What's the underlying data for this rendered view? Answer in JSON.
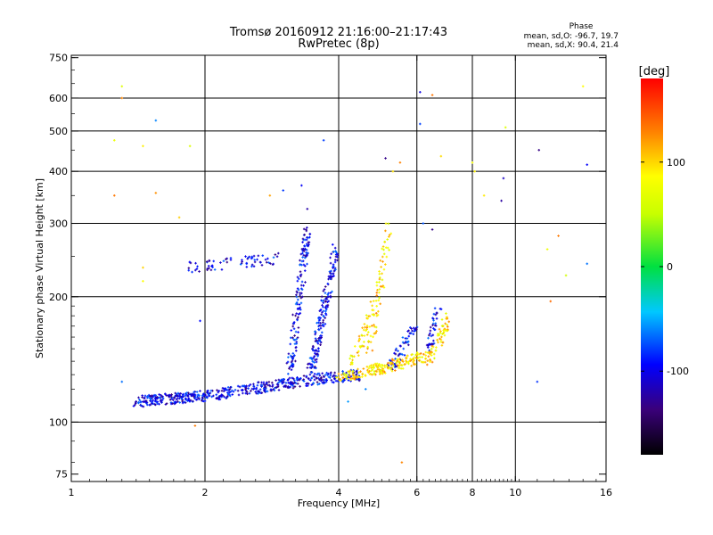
{
  "chart_data": {
    "type": "scatter",
    "title": "Tromsø 20160912 21:16:00–21:17:43",
    "subtitle": "RwPretec (8p)",
    "xlabel": "Frequency [MHz]",
    "ylabel": "Stationary phase Virtual Height [km]",
    "x_scale": "log2",
    "y_scale": "log",
    "xlim": [
      1,
      16
    ],
    "ylim": [
      72,
      760
    ],
    "x_ticks": [
      1,
      2,
      4,
      6,
      8,
      10,
      16
    ],
    "x_tick_labels": [
      "1",
      "2",
      "4",
      "6",
      "8",
      "10",
      "16"
    ],
    "y_ticks": [
      75,
      100,
      200,
      300,
      400,
      500,
      600,
      750
    ],
    "y_tick_labels": [
      "75",
      "100",
      "200",
      "300",
      "400",
      "500",
      "600",
      "750"
    ],
    "grid": true,
    "grid_x": [
      2,
      4,
      6,
      8,
      10
    ],
    "grid_y": [
      100,
      200,
      300,
      400,
      500,
      600
    ],
    "stats": {
      "title": "Phase",
      "line_o": "mean, sd,O: -96.7, 19.7",
      "line_x": "mean, sd,X:  90.4, 21.4"
    },
    "colorbar": {
      "label": "[deg]",
      "min": -180,
      "max": 180,
      "ticks": [
        100,
        0,
        -100
      ],
      "tick_labels": [
        "100",
        "0",
        "-100"
      ]
    },
    "series": [
      {
        "name": "O",
        "color_phase": -100,
        "traces": [
          {
            "f_start": 1.4,
            "f_end": 2.05,
            "h_start": 112,
            "h_end": 116,
            "count": 220
          },
          {
            "f_start": 2.05,
            "f_end": 3.8,
            "h_start": 116,
            "h_end": 128,
            "count": 260
          },
          {
            "f_start": 3.8,
            "f_end": 4.5,
            "h_start": 128,
            "h_end": 130,
            "count": 60
          },
          {
            "f_start": 3.1,
            "f_end": 3.4,
            "h_start": 130,
            "h_end": 290,
            "count": 150
          },
          {
            "f_start": 3.45,
            "f_end": 3.95,
            "h_start": 130,
            "h_end": 260,
            "count": 180
          },
          {
            "f_start": 5.2,
            "f_end": 6.0,
            "h_start": 135,
            "h_end": 170,
            "count": 60
          },
          {
            "f_start": 6.4,
            "f_end": 6.7,
            "h_start": 150,
            "h_end": 190,
            "count": 40
          },
          {
            "f_start": 1.85,
            "f_end": 3.0,
            "h_start": 235,
            "h_end": 248,
            "count": 70
          }
        ],
        "points": [
          {
            "x": 1.55,
            "y": 530
          },
          {
            "x": 6.1,
            "y": 620
          },
          {
            "x": 6.1,
            "y": 520
          },
          {
            "x": 5.1,
            "y": 430
          },
          {
            "x": 3.7,
            "y": 475
          },
          {
            "x": 3.3,
            "y": 370
          },
          {
            "x": 3.0,
            "y": 360
          },
          {
            "x": 3.4,
            "y": 325
          },
          {
            "x": 1.95,
            "y": 175
          },
          {
            "x": 9.4,
            "y": 385
          },
          {
            "x": 9.3,
            "y": 340
          },
          {
            "x": 11.3,
            "y": 450
          },
          {
            "x": 14.5,
            "y": 240
          },
          {
            "x": 14.5,
            "y": 415
          },
          {
            "x": 11.2,
            "y": 125
          },
          {
            "x": 1.3,
            "y": 125
          },
          {
            "x": 4.2,
            "y": 112
          },
          {
            "x": 4.6,
            "y": 120
          },
          {
            "x": 6.2,
            "y": 300
          },
          {
            "x": 6.5,
            "y": 290
          }
        ]
      },
      {
        "name": "X",
        "color_phase": 95,
        "traces": [
          {
            "f_start": 4.0,
            "f_end": 5.0,
            "h_start": 128,
            "h_end": 135,
            "count": 80
          },
          {
            "f_start": 4.8,
            "f_end": 6.4,
            "h_start": 133,
            "h_end": 145,
            "count": 120
          },
          {
            "f_start": 6.4,
            "f_end": 7.1,
            "h_start": 140,
            "h_end": 180,
            "count": 60
          },
          {
            "f_start": 4.7,
            "f_end": 5.2,
            "h_start": 150,
            "h_end": 295,
            "count": 70
          },
          {
            "f_start": 4.3,
            "f_end": 4.8,
            "h_start": 140,
            "h_end": 190,
            "count": 50
          }
        ],
        "points": [
          {
            "x": 1.25,
            "y": 475
          },
          {
            "x": 1.45,
            "y": 460
          },
          {
            "x": 1.85,
            "y": 460
          },
          {
            "x": 1.25,
            "y": 350
          },
          {
            "x": 1.55,
            "y": 355
          },
          {
            "x": 1.75,
            "y": 310
          },
          {
            "x": 2.8,
            "y": 350
          },
          {
            "x": 5.3,
            "y": 400
          },
          {
            "x": 5.5,
            "y": 420
          },
          {
            "x": 6.8,
            "y": 435
          },
          {
            "x": 8.0,
            "y": 420
          },
          {
            "x": 8.5,
            "y": 350
          },
          {
            "x": 9.5,
            "y": 510
          },
          {
            "x": 12.0,
            "y": 195
          },
          {
            "x": 12.5,
            "y": 280
          },
          {
            "x": 13.0,
            "y": 225
          },
          {
            "x": 14.2,
            "y": 640
          },
          {
            "x": 1.3,
            "y": 640
          },
          {
            "x": 1.3,
            "y": 600
          },
          {
            "x": 6.5,
            "y": 610
          },
          {
            "x": 1.9,
            "y": 98
          },
          {
            "x": 5.55,
            "y": 80
          },
          {
            "x": 1.45,
            "y": 218
          },
          {
            "x": 1.45,
            "y": 235
          },
          {
            "x": 8.1,
            "y": 400
          },
          {
            "x": 11.8,
            "y": 260
          }
        ]
      }
    ]
  }
}
